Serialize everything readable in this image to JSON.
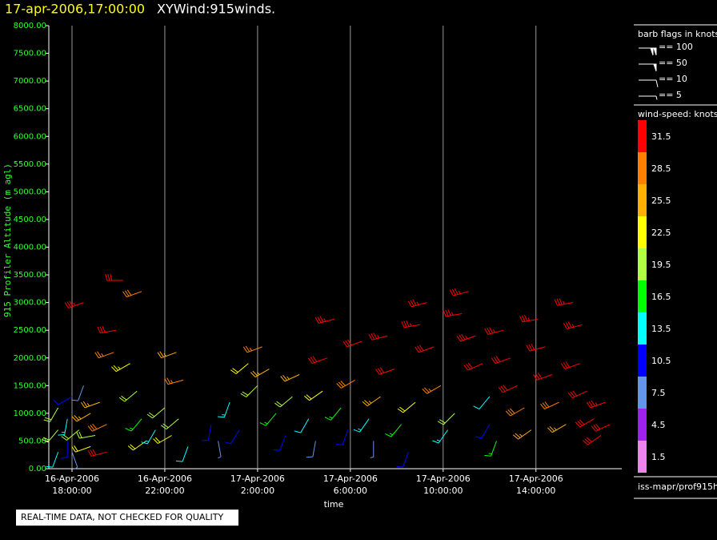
{
  "chart_data": {
    "type": "barb",
    "title": "17-apr-2006,17:00:00",
    "subtitle": "XYWind:915winds.",
    "ylabel": "915 Profiler Altitude (m agl)",
    "xlabel": "time",
    "xlim": [
      17,
      41.7
    ],
    "ylim": [
      0,
      8000
    ],
    "xticks": [
      {
        "value": 18,
        "label": "16-Apr-2006\n18:00:00"
      },
      {
        "value": 22,
        "label": "16-Apr-2006\n22:00:00"
      },
      {
        "value": 26,
        "label": "17-Apr-2006\n2:00:00"
      },
      {
        "value": 30,
        "label": "17-Apr-2006\n6:00:00"
      },
      {
        "value": 34,
        "label": "17-Apr-2006\n10:00:00"
      },
      {
        "value": 38,
        "label": "17-Apr-2006\n14:00:00"
      }
    ],
    "yticks": [
      {
        "value": 0,
        "label": "0.00"
      },
      {
        "value": 500,
        "label": "500.00"
      },
      {
        "value": 1000,
        "label": "1000.00"
      },
      {
        "value": 1500,
        "label": "1500.00"
      },
      {
        "value": 2000,
        "label": "2000.00"
      },
      {
        "value": 2500,
        "label": "2500.00"
      },
      {
        "value": 3000,
        "label": "3000.00"
      },
      {
        "value": 3500,
        "label": "3500.00"
      },
      {
        "value": 4000,
        "label": "4000.00"
      },
      {
        "value": 4500,
        "label": "4500.00"
      },
      {
        "value": 5000,
        "label": "5000.00"
      },
      {
        "value": 5500,
        "label": "5500.00"
      },
      {
        "value": 6000,
        "label": "6000.00"
      },
      {
        "value": 6500,
        "label": "6500.00"
      },
      {
        "value": 7000,
        "label": "7000.00"
      },
      {
        "value": 7500,
        "label": "7500.00"
      },
      {
        "value": 8000,
        "label": "8000.00"
      }
    ],
    "grid": true,
    "flag_legend": {
      "title": "barb flags in knots",
      "items": [
        {
          "value": 100,
          "label": "== 100"
        },
        {
          "value": 50,
          "label": "== 50"
        },
        {
          "value": 10,
          "label": "== 10"
        },
        {
          "value": 5,
          "label": "== 5"
        }
      ]
    },
    "colorbar": {
      "title": "wind-speed: knots",
      "levels": [
        31.5,
        28.5,
        25.5,
        22.5,
        19.5,
        16.5,
        13.5,
        10.5,
        7.5,
        4.5,
        1.5
      ],
      "colors": [
        "#ff0000",
        "#ff8000",
        "#ffb000",
        "#ffff00",
        "#b0ff40",
        "#00ff00",
        "#00ffff",
        "#0000ff",
        "#6495ed",
        "#a020f0",
        "#ee82ee"
      ]
    },
    "footer": "iss-mapr/prof915h",
    "notice": "REAL-TIME DATA, NOT CHECKED FOR QUALITY",
    "barbs": {
      "x": [
        17.4,
        17.4,
        17.4,
        17.8,
        17.8,
        18.0,
        18.0,
        18.3,
        18.5,
        18.8,
        18.8,
        19.0,
        19.2,
        19.5,
        19.5,
        19.8,
        19.9,
        18.5,
        20.2,
        21.0,
        20.5,
        20.8,
        21.0,
        21.2,
        21.6,
        22.0,
        22.3,
        22.5,
        22.8,
        22.6,
        23.0,
        24.0,
        24.3,
        24.8,
        25.2,
        25.6,
        26.0,
        26.2,
        26.5,
        26.8,
        27.2,
        27.5,
        27.8,
        28.2,
        28.5,
        28.8,
        29.0,
        29.3,
        29.6,
        29.9,
        30.2,
        30.5,
        30.8,
        31.0,
        31.3,
        31.6,
        31.9,
        32.2,
        32.5,
        32.8,
        33.0,
        33.3,
        33.6,
        33.9,
        34.2,
        34.5,
        34.8,
        35.1,
        35.4,
        35.7,
        36.0,
        36.0,
        36.3,
        36.6,
        36.9,
        37.2,
        37.5,
        37.8,
        38.1,
        38.4,
        38.7,
        39.0,
        39.3,
        39.6,
        39.9,
        40.2,
        40.5,
        40.8,
        41.0,
        41.2,
        40.0
      ],
      "altitude": [
        300,
        700,
        1100,
        500,
        900,
        300,
        1300,
        700,
        1500,
        400,
        1000,
        600,
        1200,
        300,
        800,
        2100,
        2500,
        3000,
        3400,
        3200,
        1900,
        1400,
        900,
        500,
        700,
        1100,
        600,
        2100,
        1600,
        900,
        400,
        800,
        500,
        1200,
        700,
        1900,
        1500,
        2200,
        1800,
        1000,
        600,
        1300,
        1700,
        900,
        500,
        1400,
        2000,
        2700,
        1100,
        700,
        1600,
        2300,
        900,
        500,
        1300,
        2400,
        1800,
        800,
        300,
        1200,
        2600,
        3000,
        2200,
        1500,
        700,
        1000,
        2800,
        3200,
        2400,
        1900,
        1300,
        800,
        500,
        2500,
        2000,
        1500,
        1100,
        700,
        2700,
        2200,
        1700,
        1200,
        800,
        3000,
        1900,
        1400,
        900,
        600,
        1200,
        800,
        2600
      ],
      "speed": [
        12,
        18,
        20,
        9,
        14,
        6,
        11,
        20,
        8,
        22,
        25,
        18,
        26,
        30,
        28,
        27,
        32,
        33,
        32,
        28,
        23,
        19,
        16,
        21,
        14,
        18,
        22,
        24,
        27,
        20,
        12,
        10,
        7,
        13,
        11,
        22,
        18,
        27,
        24,
        17,
        10,
        20,
        26,
        12,
        8,
        22,
        30,
        33,
        15,
        9,
        28,
        32,
        13,
        6,
        24,
        33,
        31,
        16,
        11,
        21,
        34,
        33,
        32,
        27,
        14,
        18,
        35,
        34,
        33,
        31,
        12,
        10,
        15,
        33,
        32,
        30,
        29,
        26,
        33,
        32,
        31,
        28,
        24,
        33,
        31,
        30,
        32,
        31,
        33,
        30,
        33
      ],
      "direction": [
        200,
        220,
        210,
        180,
        190,
        160,
        240,
        230,
        200,
        250,
        240,
        260,
        250,
        255,
        245,
        250,
        260,
        250,
        270,
        250,
        240,
        230,
        220,
        235,
        210,
        230,
        240,
        250,
        255,
        230,
        200,
        190,
        170,
        200,
        210,
        230,
        225,
        250,
        240,
        220,
        200,
        230,
        245,
        210,
        190,
        235,
        250,
        255,
        220,
        200,
        240,
        250,
        215,
        180,
        235,
        255,
        250,
        220,
        200,
        230,
        260,
        255,
        250,
        240,
        215,
        225,
        260,
        255,
        250,
        245,
        220,
        210,
        200,
        255,
        250,
        245,
        240,
        235,
        260,
        255,
        250,
        245,
        240,
        260,
        250,
        245,
        240,
        235,
        250,
        245,
        255
      ]
    }
  }
}
